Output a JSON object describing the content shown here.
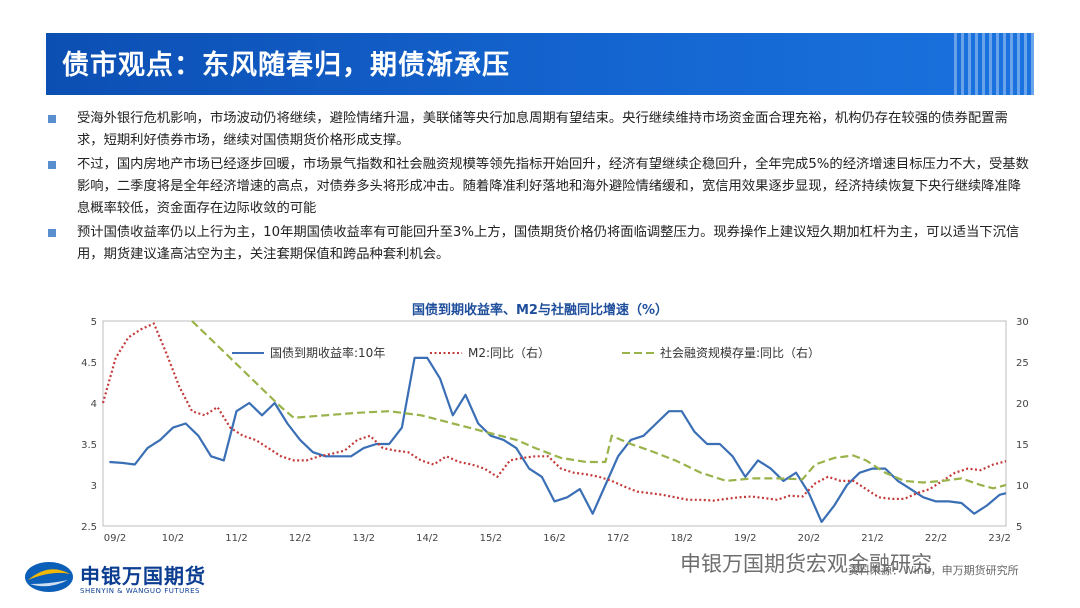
{
  "slide": {
    "title": "债市观点：东风随春归，期债渐承压"
  },
  "bullets": [
    "受海外银行危机影响，市场波动仍将继续，避险情绪升温，美联储等央行加息周期有望结束。央行继续维持市场资金面合理充裕，机构仍存在较强的债券配置需求，短期利好债券市场，继续对国债期货价格形成支撑。",
    "不过，国内房地产市场已经逐步回暖，市场景气指数和社会融资规模等领先指标开始回升，经济有望继续企稳回升，全年完成5%的经济增速目标压力不大，受基数影响，二季度将是全年经济增速的高点，对债券多头将形成冲击。随着降准利好落地和海外避险情绪缓和，宽信用效果逐步显现，经济持续恢复下央行继续降准降息概率较低，资金面存在边际收敛的可能",
    "预计国债收益率仍以上行为主，10年期国债收益率有可能回升至3%上方，国债期货价格仍将面临调整压力。现券操作上建议短久期加杠杆为主，可以适当下沉信用，期货建议逢高沽空为主，关注套期保值和跨品种套利机会。"
  ],
  "colors": {
    "accent": "#0c4fb3",
    "bullet": "#5a8fcf"
  },
  "chart_data": {
    "type": "line",
    "title": "国债到期收益率、M2与社融同比增速（%）",
    "x": [
      "09/2",
      "10/2",
      "11/2",
      "12/2",
      "13/2",
      "14/2",
      "15/2",
      "16/2",
      "17/2",
      "18/2",
      "19/2",
      "20/2",
      "21/2",
      "22/2",
      "23/2"
    ],
    "ylim_left": [
      2.5,
      5
    ],
    "yticks_left": [
      "2.5",
      "3",
      "3.5",
      "4",
      "4.5",
      "5"
    ],
    "ylim_right": [
      5,
      30
    ],
    "yticks_right": [
      "5",
      "10",
      "15",
      "20",
      "25",
      "30"
    ],
    "series": [
      {
        "name": "国债到期收益率:10年",
        "axis": "left",
        "style": "solid",
        "color": "#3a6fb5",
        "values": [
          [
            2009.1,
            3.28
          ],
          [
            2009.3,
            3.27
          ],
          [
            2009.5,
            3.25
          ],
          [
            2009.7,
            3.45
          ],
          [
            2009.9,
            3.55
          ],
          [
            2010.1,
            3.7
          ],
          [
            2010.3,
            3.75
          ],
          [
            2010.5,
            3.6
          ],
          [
            2010.7,
            3.35
          ],
          [
            2010.9,
            3.3
          ],
          [
            2011.1,
            3.9
          ],
          [
            2011.3,
            4.0
          ],
          [
            2011.5,
            3.85
          ],
          [
            2011.7,
            4.0
          ],
          [
            2011.9,
            3.75
          ],
          [
            2012.1,
            3.55
          ],
          [
            2012.3,
            3.4
          ],
          [
            2012.5,
            3.35
          ],
          [
            2012.7,
            3.35
          ],
          [
            2012.9,
            3.35
          ],
          [
            2013.1,
            3.45
          ],
          [
            2013.3,
            3.5
          ],
          [
            2013.5,
            3.5
          ],
          [
            2013.7,
            3.7
          ],
          [
            2013.9,
            4.55
          ],
          [
            2014.1,
            4.55
          ],
          [
            2014.3,
            4.3
          ],
          [
            2014.5,
            3.85
          ],
          [
            2014.7,
            4.1
          ],
          [
            2014.9,
            3.75
          ],
          [
            2015.1,
            3.6
          ],
          [
            2015.3,
            3.55
          ],
          [
            2015.5,
            3.45
          ],
          [
            2015.7,
            3.2
          ],
          [
            2015.9,
            3.1
          ],
          [
            2016.1,
            2.8
          ],
          [
            2016.3,
            2.85
          ],
          [
            2016.5,
            2.95
          ],
          [
            2016.7,
            2.65
          ],
          [
            2016.9,
            3.0
          ],
          [
            2017.1,
            3.35
          ],
          [
            2017.3,
            3.55
          ],
          [
            2017.5,
            3.6
          ],
          [
            2017.7,
            3.75
          ],
          [
            2017.9,
            3.9
          ],
          [
            2018.1,
            3.9
          ],
          [
            2018.3,
            3.65
          ],
          [
            2018.5,
            3.5
          ],
          [
            2018.7,
            3.5
          ],
          [
            2018.9,
            3.35
          ],
          [
            2019.1,
            3.1
          ],
          [
            2019.3,
            3.3
          ],
          [
            2019.5,
            3.2
          ],
          [
            2019.7,
            3.05
          ],
          [
            2019.9,
            3.15
          ],
          [
            2020.1,
            2.9
          ],
          [
            2020.3,
            2.55
          ],
          [
            2020.5,
            2.75
          ],
          [
            2020.7,
            3.0
          ],
          [
            2020.9,
            3.15
          ],
          [
            2021.1,
            3.2
          ],
          [
            2021.3,
            3.2
          ],
          [
            2021.5,
            3.05
          ],
          [
            2021.7,
            2.95
          ],
          [
            2021.9,
            2.85
          ],
          [
            2022.1,
            2.8
          ],
          [
            2022.3,
            2.8
          ],
          [
            2022.5,
            2.78
          ],
          [
            2022.7,
            2.65
          ],
          [
            2022.9,
            2.75
          ],
          [
            2023.1,
            2.88
          ],
          [
            2023.2,
            2.9
          ]
        ]
      },
      {
        "name": "M2:同比（右）",
        "axis": "right",
        "style": "dotted",
        "color": "#c43a3a",
        "values": [
          [
            2009.0,
            20
          ],
          [
            2009.2,
            25.5
          ],
          [
            2009.4,
            28
          ],
          [
            2009.6,
            29
          ],
          [
            2009.8,
            29.7
          ],
          [
            2010.0,
            26
          ],
          [
            2010.2,
            22
          ],
          [
            2010.4,
            19
          ],
          [
            2010.6,
            18.5
          ],
          [
            2010.8,
            19.5
          ],
          [
            2011.0,
            17
          ],
          [
            2011.2,
            16
          ],
          [
            2011.4,
            15.5
          ],
          [
            2011.6,
            14.5
          ],
          [
            2011.8,
            13.5
          ],
          [
            2012.0,
            13
          ],
          [
            2012.2,
            13
          ],
          [
            2012.4,
            13.5
          ],
          [
            2012.6,
            13.8
          ],
          [
            2012.8,
            14.2
          ],
          [
            2013.0,
            15.5
          ],
          [
            2013.2,
            16
          ],
          [
            2013.4,
            14.5
          ],
          [
            2013.6,
            14.2
          ],
          [
            2013.8,
            14
          ],
          [
            2014.0,
            13
          ],
          [
            2014.2,
            12.5
          ],
          [
            2014.4,
            13.5
          ],
          [
            2014.6,
            12.8
          ],
          [
            2014.8,
            12.5
          ],
          [
            2015.0,
            12
          ],
          [
            2015.2,
            11
          ],
          [
            2015.4,
            13
          ],
          [
            2015.6,
            13.3
          ],
          [
            2015.8,
            13.5
          ],
          [
            2016.0,
            13.5
          ],
          [
            2016.2,
            12
          ],
          [
            2016.4,
            11.5
          ],
          [
            2016.6,
            11.3
          ],
          [
            2016.8,
            11
          ],
          [
            2017.0,
            10.5
          ],
          [
            2017.2,
            9.8
          ],
          [
            2017.4,
            9.2
          ],
          [
            2017.6,
            9
          ],
          [
            2017.8,
            8.8
          ],
          [
            2018.0,
            8.5
          ],
          [
            2018.2,
            8.2
          ],
          [
            2018.4,
            8.2
          ],
          [
            2018.6,
            8.1
          ],
          [
            2018.8,
            8.3
          ],
          [
            2019.0,
            8.5
          ],
          [
            2019.2,
            8.6
          ],
          [
            2019.4,
            8.4
          ],
          [
            2019.6,
            8.2
          ],
          [
            2019.8,
            8.7
          ],
          [
            2020.0,
            8.6
          ],
          [
            2020.2,
            10.2
          ],
          [
            2020.4,
            11.0
          ],
          [
            2020.6,
            10.5
          ],
          [
            2020.8,
            10.5
          ],
          [
            2021.0,
            9.5
          ],
          [
            2021.2,
            8.5
          ],
          [
            2021.4,
            8.3
          ],
          [
            2021.6,
            8.3
          ],
          [
            2021.8,
            9.0
          ],
          [
            2022.0,
            9.5
          ],
          [
            2022.2,
            10.5
          ],
          [
            2022.4,
            11.5
          ],
          [
            2022.6,
            12.0
          ],
          [
            2022.8,
            11.8
          ],
          [
            2023.0,
            12.5
          ],
          [
            2023.2,
            12.9
          ]
        ]
      },
      {
        "name": "社会融资规模存量:同比（右）",
        "axis": "right",
        "style": "dashed",
        "color": "#99b34a",
        "values": [
          [
            2010.4,
            30
          ],
          [
            2010.8,
            27
          ],
          [
            2011.2,
            24
          ],
          [
            2011.6,
            21
          ],
          [
            2011.8,
            19.5
          ],
          [
            2012.0,
            18.2
          ],
          [
            2012.5,
            18.5
          ],
          [
            2013.0,
            18.8
          ],
          [
            2013.5,
            19.0
          ],
          [
            2014.0,
            18.5
          ],
          [
            2014.5,
            17.5
          ],
          [
            2015.0,
            16.5
          ],
          [
            2015.5,
            15.5
          ],
          [
            2015.8,
            14.5
          ],
          [
            2016.2,
            13.3
          ],
          [
            2016.6,
            12.8
          ],
          [
            2016.9,
            12.8
          ],
          [
            2017.0,
            16
          ],
          [
            2017.3,
            15
          ],
          [
            2017.6,
            14.2
          ],
          [
            2018.0,
            13.0
          ],
          [
            2018.4,
            11.5
          ],
          [
            2018.8,
            10.5
          ],
          [
            2019.2,
            10.8
          ],
          [
            2019.6,
            10.8
          ],
          [
            2020.0,
            10.7
          ],
          [
            2020.2,
            12.5
          ],
          [
            2020.5,
            13.3
          ],
          [
            2020.8,
            13.6
          ],
          [
            2021.0,
            13.0
          ],
          [
            2021.3,
            11.5
          ],
          [
            2021.6,
            10.5
          ],
          [
            2021.9,
            10.3
          ],
          [
            2022.2,
            10.5
          ],
          [
            2022.5,
            10.8
          ],
          [
            2022.8,
            10.0
          ],
          [
            2023.0,
            9.6
          ],
          [
            2023.2,
            10.0
          ]
        ]
      }
    ]
  },
  "footer": {
    "logo_cn": "申银万国期货",
    "logo_en": "SHENYIN & WANGUO FUTURES",
    "watermark": "申银万国期货宏观金融研究",
    "source": "资料来源：Wind，申万期货研究所"
  }
}
